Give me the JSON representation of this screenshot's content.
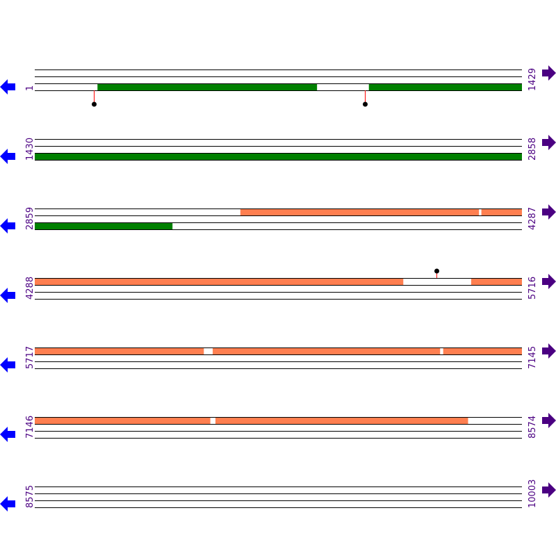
{
  "bp_per_row": 1429,
  "colors": {
    "cds_green": "#008000",
    "cds_orange": "#ff7f50",
    "line": "#000000",
    "label": "#4b0082",
    "reverse_arrow": "#0000ff",
    "forward_arrow": "#4b0082",
    "marker_stem": "#ff0000",
    "marker_dot": "#000000"
  },
  "rows": [
    {
      "start": "1",
      "end": "1429",
      "features": [
        {
          "track": 2,
          "from": 185,
          "to": 828,
          "color": "cds_green"
        },
        {
          "track": 2,
          "from": 981,
          "to": 1429,
          "color": "cds_green"
        }
      ],
      "markers": [
        {
          "pos": 174,
          "side": "below"
        },
        {
          "pos": 969,
          "side": "below"
        }
      ]
    },
    {
      "start": "1430",
      "end": "2858",
      "features": [
        {
          "track": 2,
          "from": 1430,
          "to": 2858,
          "color": "cds_green"
        }
      ],
      "markers": []
    },
    {
      "start": "2859",
      "end": "4287",
      "features": [
        {
          "track": 0,
          "from": 3462,
          "to": 4161,
          "color": "cds_orange"
        },
        {
          "track": 0,
          "from": 4169,
          "to": 4287,
          "color": "cds_orange"
        },
        {
          "track": 2,
          "from": 2859,
          "to": 3262,
          "color": "cds_green"
        }
      ],
      "markers": []
    },
    {
      "start": "4288",
      "end": "5716",
      "features": [
        {
          "track": 0,
          "from": 4288,
          "to": 5368,
          "color": "cds_orange"
        },
        {
          "track": 0,
          "from": 5568,
          "to": 5716,
          "color": "cds_orange"
        }
      ],
      "markers": [
        {
          "pos": 5466,
          "side": "above"
        }
      ]
    },
    {
      "start": "5717",
      "end": "7145",
      "features": [
        {
          "track": 0,
          "from": 5717,
          "to": 6212,
          "color": "cds_orange"
        },
        {
          "track": 0,
          "from": 6239,
          "to": 6905,
          "color": "cds_orange"
        },
        {
          "track": 0,
          "from": 6915,
          "to": 7145,
          "color": "cds_orange"
        }
      ],
      "markers": []
    },
    {
      "start": "7146",
      "end": "8574",
      "features": [
        {
          "track": 0,
          "from": 7146,
          "to": 7660,
          "color": "cds_orange"
        },
        {
          "track": 0,
          "from": 7676,
          "to": 8416,
          "color": "cds_orange"
        }
      ],
      "markers": []
    },
    {
      "start": "8575",
      "end": "10003",
      "features": [],
      "markers": []
    }
  ]
}
